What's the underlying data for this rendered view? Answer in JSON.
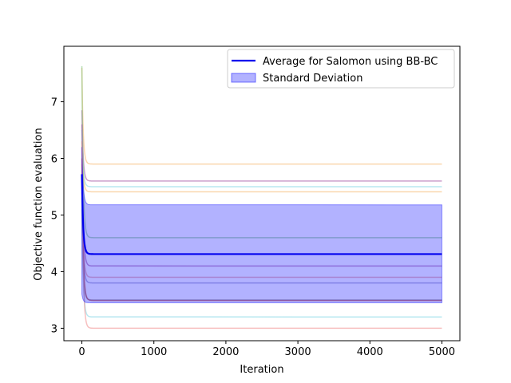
{
  "chart_data": {
    "type": "line",
    "title": "",
    "xlabel": "Iteration",
    "ylabel": "Objective function evaluation",
    "xlim": [
      -250,
      5250
    ],
    "ylim": [
      2.78,
      7.98
    ],
    "xticks": [
      0,
      1000,
      2000,
      3000,
      4000,
      5000
    ],
    "yticks": [
      3,
      4,
      5,
      6,
      7
    ],
    "grid": false,
    "legend_position": "top-right",
    "legend": {
      "average_label": "Average for Salomon using BB-BC",
      "std_label": "Standard Deviation"
    },
    "average": {
      "name": "Average for Salomon using BB-BC",
      "color": "#0000ee",
      "start": 5.72,
      "final": 4.31
    },
    "std_band": {
      "name": "Standard Deviation",
      "color": "#0000ff",
      "lower": 3.45,
      "upper": 5.18,
      "start_lower": 3.6,
      "start_upper": 6.2
    },
    "x_end": 5000,
    "runs": [
      {
        "color": "#f5b469",
        "start": 7.6,
        "final": 5.9
      },
      {
        "color": "#a04fa0",
        "start": 6.85,
        "final": 5.6
      },
      {
        "color": "#7fd6e3",
        "start": 6.5,
        "final": 5.5
      },
      {
        "color": "#f5b469",
        "start": 6.3,
        "final": 5.41
      },
      {
        "color": "#7cc47c",
        "start": 7.63,
        "final": 4.6
      },
      {
        "color": "#a04fa0",
        "start": 6.6,
        "final": 4.1
      },
      {
        "color": "#e58585",
        "start": 5.9,
        "final": 3.9
      },
      {
        "color": "#7f7fbf",
        "start": 5.4,
        "final": 3.8
      },
      {
        "color": "#8f8f8f",
        "start": 5.1,
        "final": 3.5
      },
      {
        "color": "#c0392b",
        "start": 6.0,
        "final": 3.49
      },
      {
        "color": "#7fd6e3",
        "start": 5.3,
        "final": 3.2
      },
      {
        "color": "#f08a8a",
        "start": 6.2,
        "final": 3.0
      }
    ]
  }
}
